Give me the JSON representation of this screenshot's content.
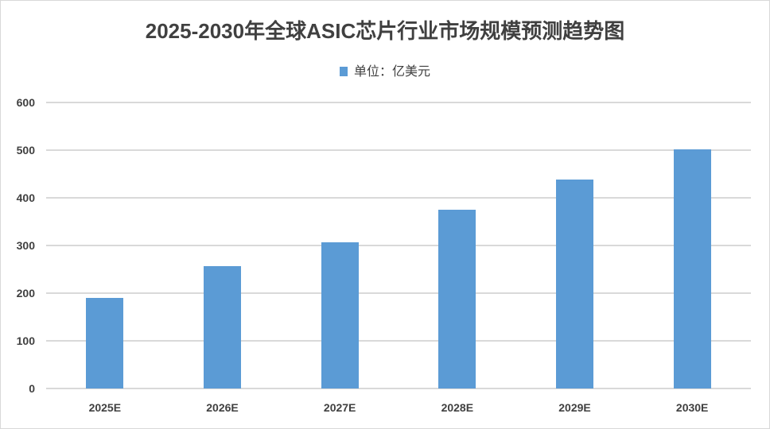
{
  "chart_data": {
    "type": "bar",
    "title": "2025-2030年全球ASIC芯片行业市场规模预测趋势图",
    "xlabel": "",
    "ylabel": "",
    "categories": [
      "2025E",
      "2026E",
      "2027E",
      "2028E",
      "2029E",
      "2030E"
    ],
    "series": [
      {
        "name": "单位：亿美元",
        "values": [
          190,
          257,
          307,
          375,
          438,
          501
        ],
        "color": "#5b9bd5"
      }
    ],
    "ylim": [
      0,
      600
    ],
    "yticks": [
      "0",
      "100",
      "200",
      "300",
      "400",
      "500",
      "600"
    ],
    "grid": true,
    "legend_position": "top"
  },
  "title": "2025-2030年全球ASIC芯片行业市场规模预测趋势图",
  "legend": {
    "label": "单位：亿美元",
    "color": "#5b9bd5"
  }
}
